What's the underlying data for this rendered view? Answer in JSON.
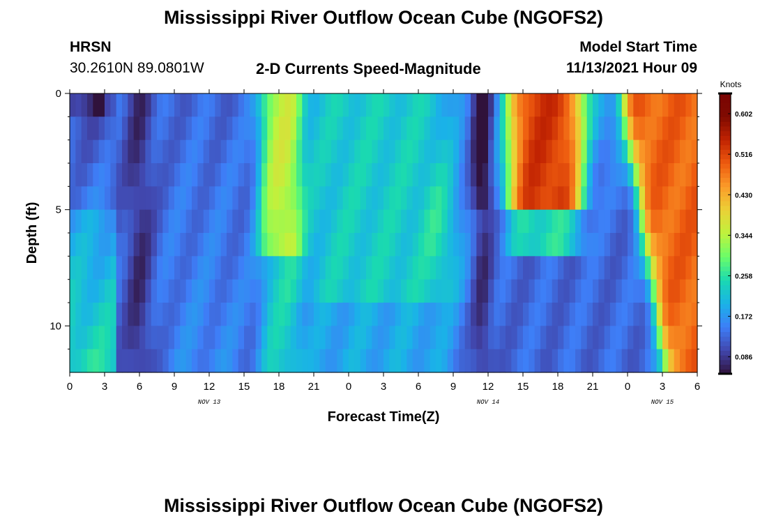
{
  "header": {
    "title": "Mississippi River Outflow Ocean Cube (NGOFS2)",
    "station": "HRSN",
    "coords": "30.2610N  89.0801W",
    "plot_title": "2-D Currents Speed-Magnitude",
    "model_label": "Model Start Time",
    "model_time": "11/13/2021 Hour 09",
    "footer_title": "Mississippi River Outflow Ocean Cube (NGOFS2)"
  },
  "chart_data": {
    "type": "heatmap",
    "title": "2-D Currents Speed-Magnitude",
    "xlabel": "Forecast Time(Z)",
    "ylabel": "Depth (ft)",
    "x_ticks": [
      "0",
      "3",
      "6",
      "9",
      "12",
      "15",
      "18",
      "21",
      "0",
      "3",
      "6",
      "9",
      "12",
      "15",
      "18",
      "21",
      "0",
      "3",
      "6"
    ],
    "x_range_hours": [
      0,
      54
    ],
    "day_labels": [
      {
        "label": "NOV 13",
        "hour": 12
      },
      {
        "label": "NOV 14",
        "hour": 36
      },
      {
        "label": "NOV 15",
        "hour": 51
      }
    ],
    "y_ticks": [
      "0",
      "5",
      "10"
    ],
    "y_tick_values": [
      0,
      5,
      10
    ],
    "y_range_ft": [
      0,
      12
    ],
    "depth_levels_ft": [
      0.5,
      1.5,
      2.5,
      3.5,
      4.5,
      5.5,
      6.5,
      7.5,
      8.5,
      9.5,
      10.5,
      11.5
    ],
    "colorbar": {
      "title": "Knots",
      "range": [
        0.05,
        0.645
      ],
      "ticks": [
        "0.086",
        "0.172",
        "0.258",
        "0.344",
        "0.430",
        "0.516",
        "0.602"
      ],
      "tick_values": [
        0.086,
        0.172,
        0.258,
        0.344,
        0.43,
        0.516,
        0.602
      ],
      "colors": [
        "#30123b",
        "#4146ac",
        "#3e7ef7",
        "#1ab2e8",
        "#1ad9b1",
        "#6afd6a",
        "#bef33d",
        "#ebd136",
        "#fb9d2a",
        "#ee5b0f",
        "#c22402",
        "#800b01",
        "#7a0403"
      ]
    },
    "features": [
      {
        "name": "low-speed column",
        "hour_range": [
          5,
          7
        ],
        "speed_knots": 0.09
      },
      {
        "name": "surface minimum",
        "hour": 2.5,
        "depth_ft": 0.3,
        "speed_knots": 0.05
      },
      {
        "name": "high-speed band",
        "hour_range": [
          17,
          19.5
        ],
        "depth_ft": [
          0,
          7.5
        ],
        "speed_knots": 0.42
      },
      {
        "name": "moderate plateau",
        "hour_range": [
          21,
          33
        ],
        "speed_knots": 0.24
      },
      {
        "name": "low-speed column",
        "hour_range": [
          35,
          36.5
        ],
        "speed_knots": 0.1
      },
      {
        "name": "high-speed lobe",
        "hour_range": [
          38,
          44
        ],
        "depth_ft": [
          0,
          5.5
        ],
        "speed_knots": 0.55
      },
      {
        "name": "high-speed wedge",
        "hour_range": [
          49,
          54
        ],
        "speed_knots": 0.5
      }
    ]
  }
}
